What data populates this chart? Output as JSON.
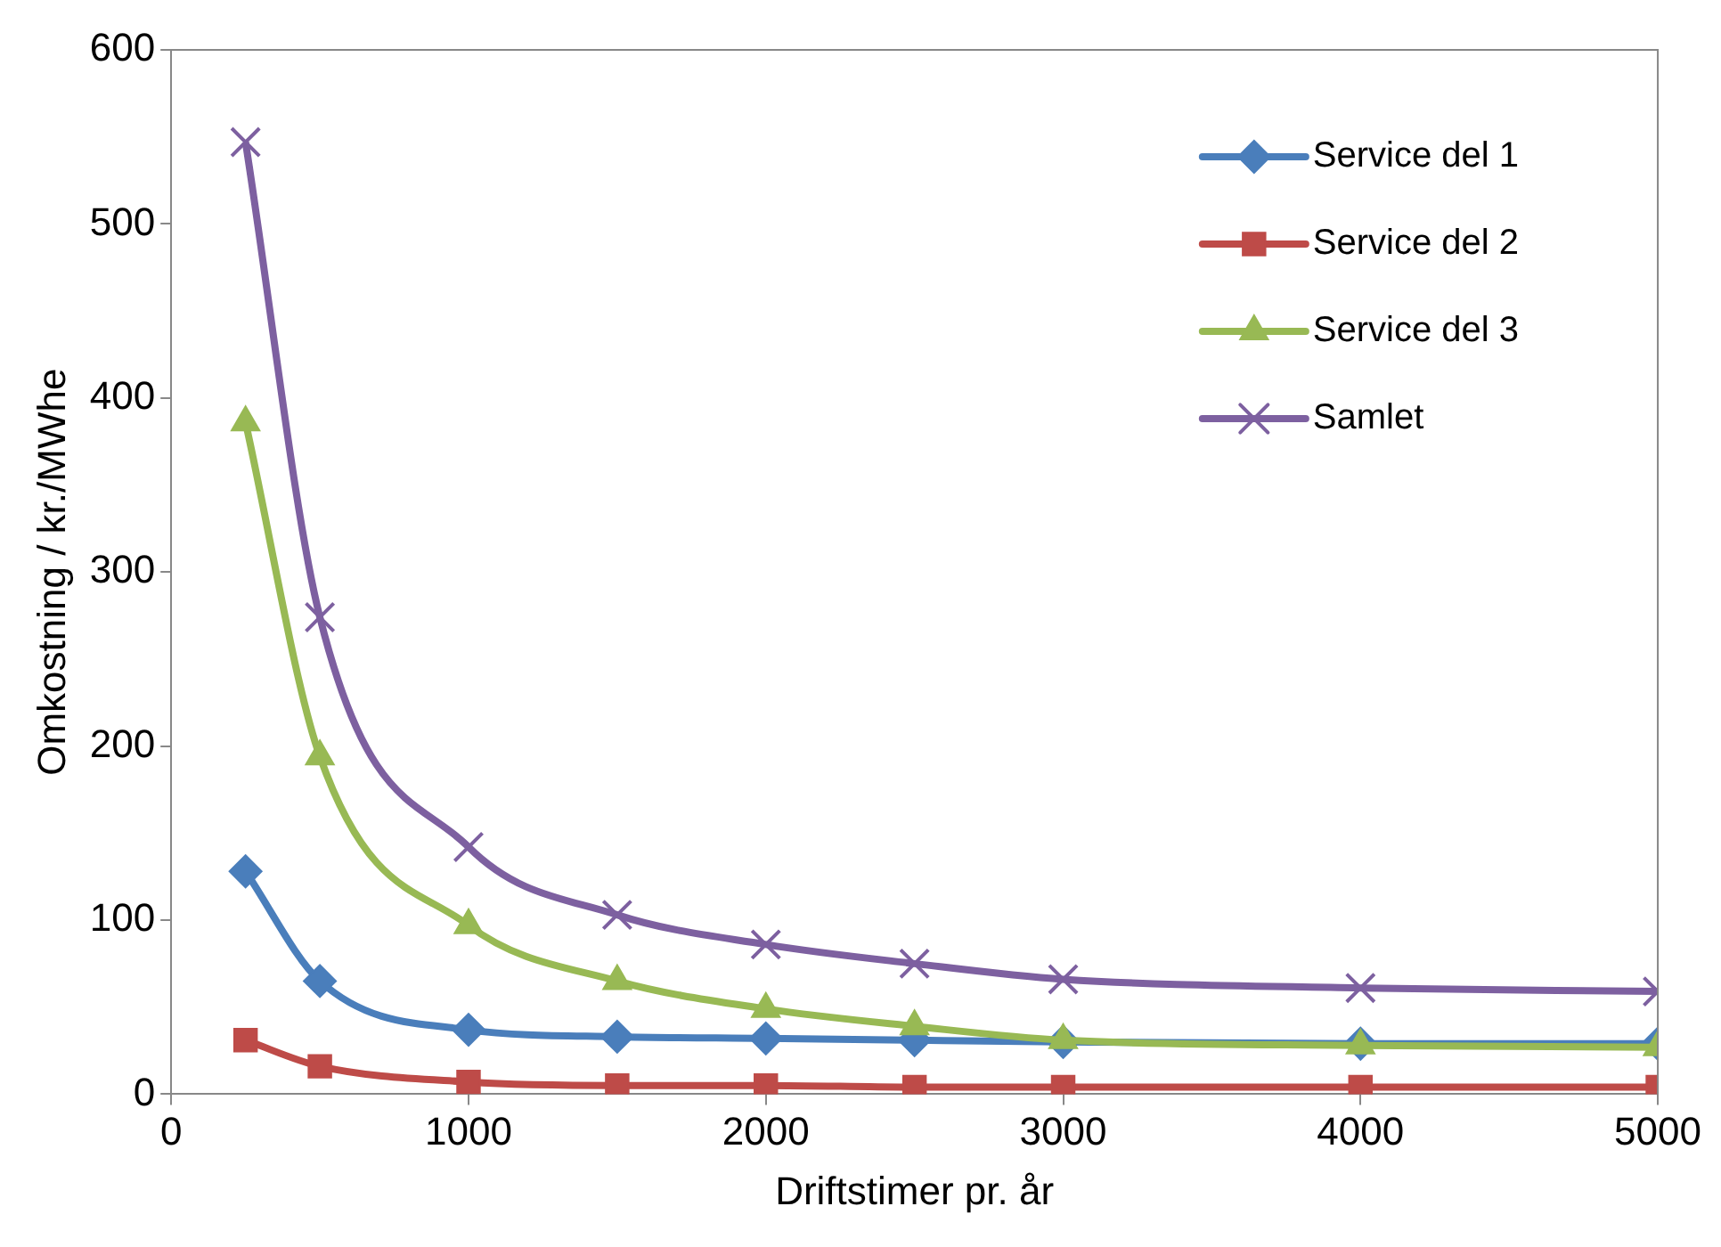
{
  "chart_data": {
    "type": "line",
    "xlabel": "Driftstimer pr. år",
    "ylabel": "Omkostning / kr./MWhe",
    "x": [
      250,
      500,
      1000,
      1500,
      2000,
      2500,
      3000,
      4000,
      5000
    ],
    "series": [
      {
        "name": "Service del 1",
        "color": "#4a7ebb",
        "marker": "diamond",
        "values": [
          128,
          65,
          37,
          33,
          32,
          31,
          30,
          29,
          29
        ]
      },
      {
        "name": "Service del 2",
        "color": "#be4b48",
        "marker": "square",
        "values": [
          31,
          16,
          7,
          5,
          5,
          4,
          4,
          4,
          4
        ]
      },
      {
        "name": "Service del 3",
        "color": "#98b954",
        "marker": "triangle",
        "values": [
          386,
          194,
          97,
          65,
          49,
          39,
          31,
          28,
          27
        ]
      },
      {
        "name": "Samlet",
        "color": "#7d60a0",
        "marker": "cross",
        "values": [
          547,
          274,
          142,
          103,
          86,
          75,
          66,
          61,
          59
        ]
      }
    ],
    "xlim": [
      0,
      5000
    ],
    "xticks": [
      0,
      1000,
      2000,
      3000,
      4000,
      5000
    ],
    "ylim": [
      0,
      600
    ],
    "yticks": [
      0,
      100,
      200,
      300,
      400,
      500,
      600
    ],
    "grid": false,
    "legend": "top right"
  }
}
